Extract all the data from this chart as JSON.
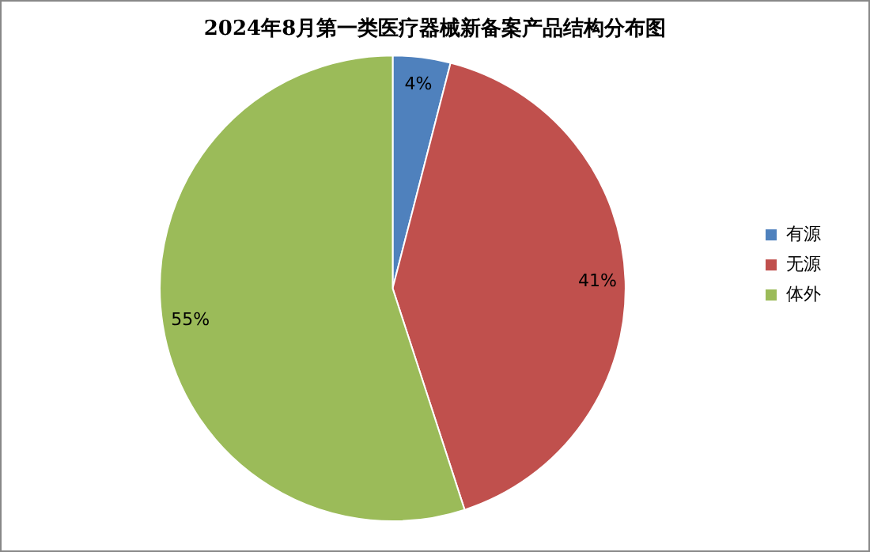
{
  "chart_data": {
    "type": "pie",
    "title": "2024年8月第一类医疗器械新备案产品结构分布图",
    "categories": [
      "有源",
      "无源",
      "体外"
    ],
    "values": [
      4,
      41,
      55
    ],
    "colors": [
      "#4f81bd",
      "#c0504d",
      "#9bbb59"
    ],
    "value_labels": [
      "4%",
      "41%",
      "55%"
    ],
    "legend": "right"
  }
}
